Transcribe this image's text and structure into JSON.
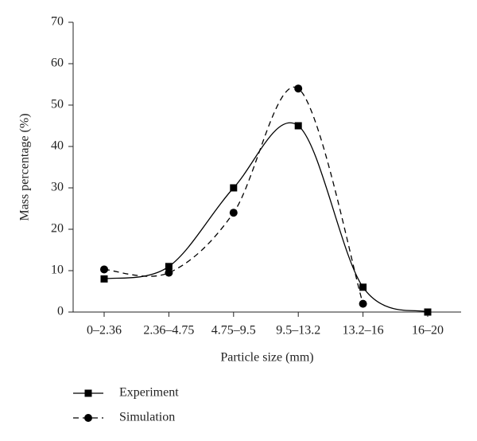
{
  "chart_data": {
    "type": "line",
    "xlabel": "Particle size (mm)",
    "ylabel": "Mass percentage (%)",
    "categories": [
      "0–2.36",
      "2.36–4.75",
      "4.75–9.5",
      "9.5–13.2",
      "13.2–16",
      "16–20"
    ],
    "series": [
      {
        "name": "Experiment",
        "color": "#000000",
        "linestyle": "solid",
        "marker": "square",
        "values": [
          8,
          11,
          30,
          45,
          6,
          0
        ]
      },
      {
        "name": "Simulation",
        "color": "#000000",
        "linestyle": "dashed",
        "marker": "circle",
        "values": [
          10.3,
          9.5,
          24,
          54,
          2,
          null
        ]
      }
    ],
    "ylim": [
      0,
      70
    ],
    "yticks": [
      0,
      10,
      20,
      30,
      40,
      50,
      60,
      70
    ],
    "smooth": true
  }
}
